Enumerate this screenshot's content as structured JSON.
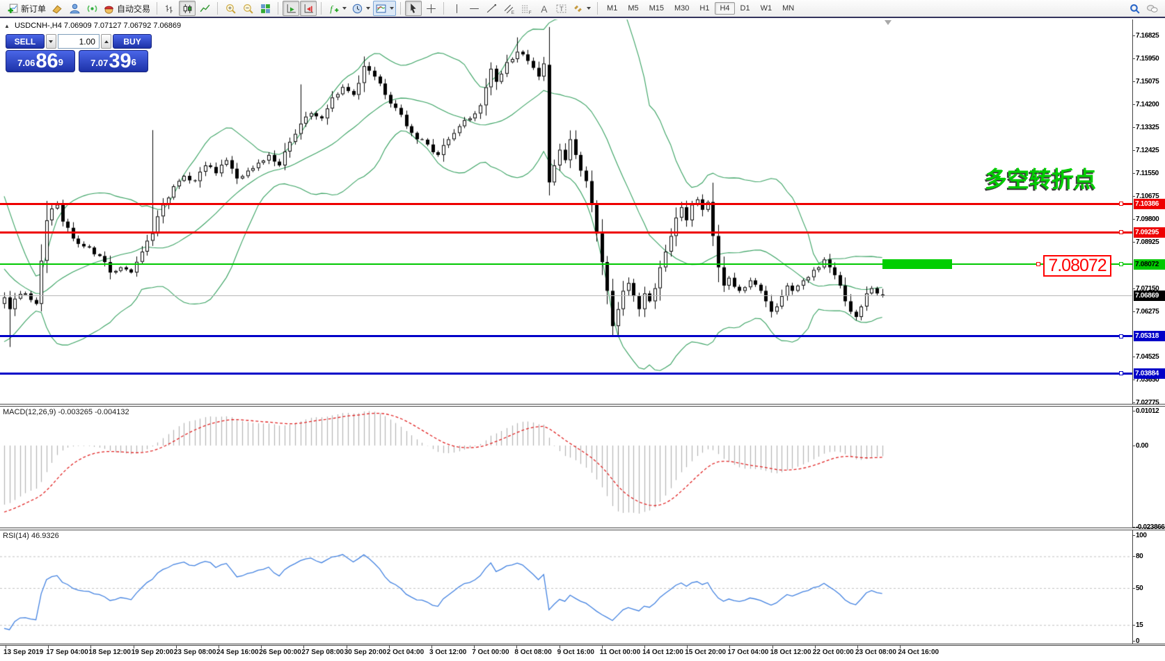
{
  "toolbar": {
    "new_order_label": "新订单",
    "autotrading_label": "自动交易",
    "timeframes": [
      "M1",
      "M5",
      "M15",
      "M30",
      "H1",
      "H4",
      "D1",
      "W1",
      "MN"
    ],
    "active_timeframe": "H4",
    "active_chart_type": "candlestick-chart",
    "icon_names": [
      "new-order",
      "eraser",
      "metaeditor",
      "signal",
      "autotrading",
      "bar-chart",
      "candlestick-chart",
      "line-chart",
      "zoom-in",
      "zoom-out",
      "tile-windows",
      "auto-scroll",
      "chart-shift",
      "indicators",
      "periods",
      "templates",
      "cursor",
      "crosshair",
      "vertical-line",
      "horizontal-line",
      "trendline",
      "equidistant-channel",
      "fibonacci",
      "text",
      "text-label",
      "arrows",
      "search",
      "chat"
    ]
  },
  "chart": {
    "symbol_title": "USDCNH-,H4",
    "ohlc_title": "7.06909 7.07127 7.06792 7.06869"
  },
  "one_click": {
    "sell_label": "SELL",
    "buy_label": "BUY",
    "volume": "1.00",
    "sell_price_small": "7.06",
    "sell_price_big": "86",
    "sell_price_sup": "9",
    "buy_price_small": "7.07",
    "buy_price_big": "39",
    "buy_price_sup": "6"
  },
  "annotation": {
    "text": "多空转折点",
    "color": "#00CC00"
  },
  "floating_label": {
    "text": "7.08072",
    "color": "#FF0000"
  },
  "indicator_labels": {
    "macd": "MACD(12,26,9) -0.003265 -0.004132",
    "rsi": "RSI(14) 46.9326"
  },
  "chart_data": {
    "type": "candlestick",
    "symbol": "USDCNH-",
    "timeframe": "H4",
    "last_candle": {
      "open": 7.06909,
      "high": 7.07127,
      "low": 7.06792,
      "close": 7.06869
    },
    "current_price": {
      "label": "7.06869",
      "value": 7.06869
    },
    "y_axis_ticks": [
      "7.16825",
      "7.15950",
      "7.15075",
      "7.14200",
      "7.13325",
      "7.12425",
      "7.11550",
      "7.10675",
      "7.09800",
      "7.08925",
      "7.07150",
      "7.06275",
      "7.04525",
      "7.03650",
      "7.02775"
    ],
    "x_axis_labels": [
      "13 Sep 2019",
      "17 Sep 04:00",
      "18 Sep 12:00",
      "19 Sep 20:00",
      "23 Sep 08:00",
      "24 Sep 16:00",
      "26 Sep 00:00",
      "27 Sep 08:00",
      "30 Sep 20:00",
      "2 Oct 04:00",
      "3 Oct 12:00",
      "7 Oct 00:00",
      "8 Oct 08:00",
      "9 Oct 16:00",
      "11 Oct 00:00",
      "14 Oct 12:00",
      "15 Oct 20:00",
      "17 Oct 04:00",
      "18 Oct 12:00",
      "22 Oct 00:00",
      "23 Oct 08:00",
      "24 Oct 16:00"
    ],
    "horizontal_lines": [
      {
        "price": 7.10386,
        "label": "7.10386",
        "color": "#EE0000",
        "text": "#ffffff",
        "thickness": 3
      },
      {
        "price": 7.09295,
        "label": "7.09295",
        "color": "#EE0000",
        "text": "#ffffff",
        "thickness": 3
      },
      {
        "price": 7.08072,
        "label": "7.08072",
        "color": "#00C800",
        "text": "#000000",
        "thickness": 2
      },
      {
        "price": 7.05318,
        "label": "7.05318",
        "color": "#0000C8",
        "text": "#ffffff",
        "thickness": 3
      },
      {
        "price": 7.03884,
        "label": "7.03884",
        "color": "#0000C8",
        "text": "#ffffff",
        "thickness": 3
      }
    ],
    "highlight_zone": {
      "price": 7.08072,
      "color": "#00CE00"
    },
    "indicators": {
      "bollinger": {
        "period": 20,
        "deviation": 2,
        "color": "#35A05F"
      },
      "macd": {
        "fast": 12,
        "slow": 26,
        "signal": 9,
        "value": -0.003265,
        "signal_value": -0.004132,
        "scale_labels": [
          "0.01012",
          "0.00",
          "-0.023866"
        ],
        "scale_values": [
          0.01012,
          0,
          -0.023866
        ],
        "histogram_color": "#B4B4B4",
        "signal_color": "#E02020"
      },
      "rsi": {
        "period": 14,
        "value": 46.9326,
        "levels": [
          80,
          50,
          15
        ],
        "scale_labels": [
          "100",
          "80",
          "50",
          "15",
          "0"
        ],
        "scale_values": [
          100,
          80,
          50,
          15,
          0
        ],
        "color": "#4080E0"
      }
    },
    "price_anchors": [
      [
        0,
        7.068
      ],
      [
        1,
        7.0635
      ],
      [
        2,
        7.0675
      ],
      [
        4,
        7.0695
      ],
      [
        5,
        7.067
      ],
      [
        6,
        7.0655
      ],
      [
        7,
        7.082
      ],
      [
        8,
        7.0975
      ],
      [
        9,
        7.102
      ],
      [
        10,
        7.1035
      ],
      [
        11,
        7.097
      ],
      [
        13,
        7.0905
      ],
      [
        15,
        7.0875
      ],
      [
        17,
        7.0845
      ],
      [
        19,
        7.0815
      ],
      [
        20,
        7.0775
      ],
      [
        22,
        7.0795
      ],
      [
        24,
        7.0775
      ],
      [
        26,
        7.0855
      ],
      [
        28,
        7.0925
      ],
      [
        30,
        7.1035
      ],
      [
        32,
        7.1105
      ],
      [
        34,
        7.1145
      ],
      [
        36,
        7.1125
      ],
      [
        38,
        7.1185
      ],
      [
        40,
        7.1155
      ],
      [
        42,
        7.1205
      ],
      [
        44,
        7.1135
      ],
      [
        46,
        7.1165
      ],
      [
        48,
        7.1195
      ],
      [
        50,
        7.1225
      ],
      [
        52,
        7.1185
      ],
      [
        54,
        7.1275
      ],
      [
        56,
        7.1345
      ],
      [
        58,
        7.1385
      ],
      [
        60,
        7.1365
      ],
      [
        62,
        7.1445
      ],
      [
        64,
        7.1485
      ],
      [
        66,
        7.1455
      ],
      [
        68,
        7.1565
      ],
      [
        70,
        7.1525
      ],
      [
        72,
        7.1455
      ],
      [
        74,
        7.1405
      ],
      [
        76,
        7.1335
      ],
      [
        78,
        7.1285
      ],
      [
        80,
        7.1265
      ],
      [
        82,
        7.1225
      ],
      [
        84,
        7.1285
      ],
      [
        86,
        7.1335
      ],
      [
        88,
        7.1365
      ],
      [
        90,
        7.1415
      ],
      [
        92,
        7.1555
      ],
      [
        93,
        7.1505
      ],
      [
        95,
        7.158
      ],
      [
        97,
        7.162
      ],
      [
        99,
        7.1585
      ],
      [
        101,
        7.1525
      ],
      [
        102,
        7.1575
      ],
      [
        103,
        7.112
      ],
      [
        104,
        7.1185
      ],
      [
        105,
        7.1245
      ],
      [
        106,
        7.1205
      ],
      [
        107,
        7.1285
      ],
      [
        108,
        7.1225
      ],
      [
        109,
        7.1165
      ],
      [
        110,
        7.1125
      ],
      [
        111,
        7.1035
      ],
      [
        112,
        7.0925
      ],
      [
        113,
        7.0815
      ],
      [
        114,
        7.0705
      ],
      [
        115,
        7.057
      ],
      [
        116,
        7.0635
      ],
      [
        117,
        7.0705
      ],
      [
        118,
        7.0735
      ],
      [
        119,
        7.0685
      ],
      [
        120,
        7.0635
      ],
      [
        121,
        7.0695
      ],
      [
        122,
        7.0665
      ],
      [
        123,
        7.0715
      ],
      [
        124,
        7.0795
      ],
      [
        125,
        7.0855
      ],
      [
        126,
        7.0915
      ],
      [
        127,
        7.0985
      ],
      [
        128,
        7.1025
      ],
      [
        129,
        7.0975
      ],
      [
        130,
        7.1035
      ],
      [
        131,
        7.1055
      ],
      [
        132,
        7.1015
      ],
      [
        133,
        7.1045
      ],
      [
        134,
        7.0915
      ],
      [
        135,
        7.0795
      ],
      [
        136,
        7.0725
      ],
      [
        137,
        7.0755
      ],
      [
        139,
        7.0705
      ],
      [
        141,
        7.0745
      ],
      [
        143,
        7.0705
      ],
      [
        144,
        7.0665
      ],
      [
        145,
        7.0625
      ],
      [
        146,
        7.0645
      ],
      [
        147,
        7.0685
      ],
      [
        148,
        7.0725
      ],
      [
        149,
        7.0705
      ],
      [
        151,
        7.0745
      ],
      [
        153,
        7.0785
      ],
      [
        155,
        7.0825
      ],
      [
        156,
        7.0795
      ],
      [
        157,
        7.0765
      ],
      [
        158,
        7.0725
      ],
      [
        159,
        7.0665
      ],
      [
        160,
        7.0625
      ],
      [
        161,
        7.0605
      ],
      [
        162,
        7.0645
      ],
      [
        163,
        7.0695
      ],
      [
        164,
        7.0715
      ],
      [
        165,
        7.0695
      ],
      [
        166,
        7.06869
      ]
    ],
    "candle_overrides": {
      "1": {
        "low": 7.049
      },
      "28": {
        "high": 7.132
      },
      "56": {
        "high": 7.1495
      },
      "97": {
        "high": 7.1675
      },
      "103": {
        "open": 7.157,
        "low": 7.107
      },
      "115": {
        "low": 7.053
      },
      "166": {
        "open": 7.06909,
        "high": 7.07127,
        "low": 7.06792,
        "close": 7.06869
      }
    }
  }
}
